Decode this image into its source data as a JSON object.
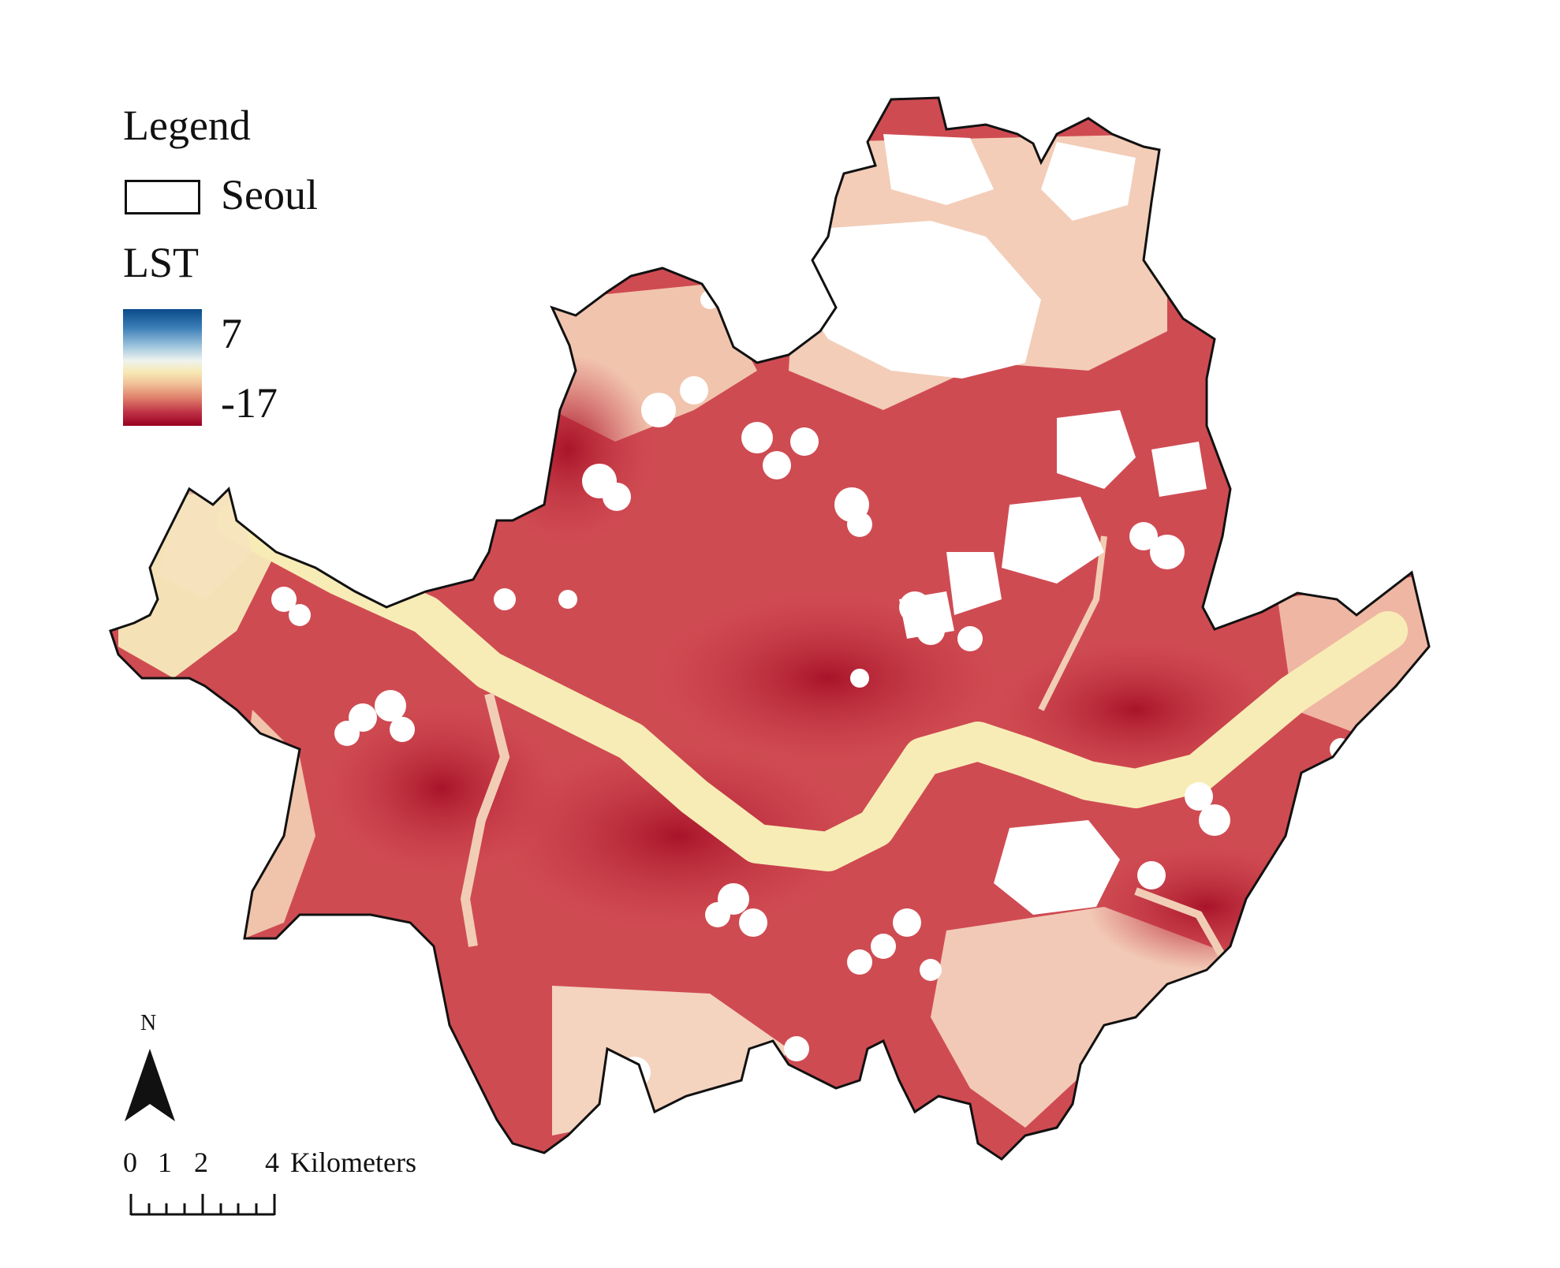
{
  "legend": {
    "title": "Legend",
    "boundary_label": "Seoul",
    "layer_title": "LST",
    "ramp_max": "7",
    "ramp_min": "-17",
    "ramp_colors": [
      "#0b4a8a",
      "#9fc6dd",
      "#f7e9b4",
      "#e0806b",
      "#98001f"
    ]
  },
  "north_arrow": {
    "label": "N"
  },
  "scale_bar": {
    "ticks": [
      "0",
      "1",
      "2",
      "4"
    ],
    "unit": "Kilometers"
  },
  "colors": {
    "boundary": "#111111",
    "river": "#f8ecb6",
    "hot": "#c2303f",
    "warm": "#e88a7a",
    "mild": "#f6d2bd",
    "cloud": "#ffffff"
  }
}
